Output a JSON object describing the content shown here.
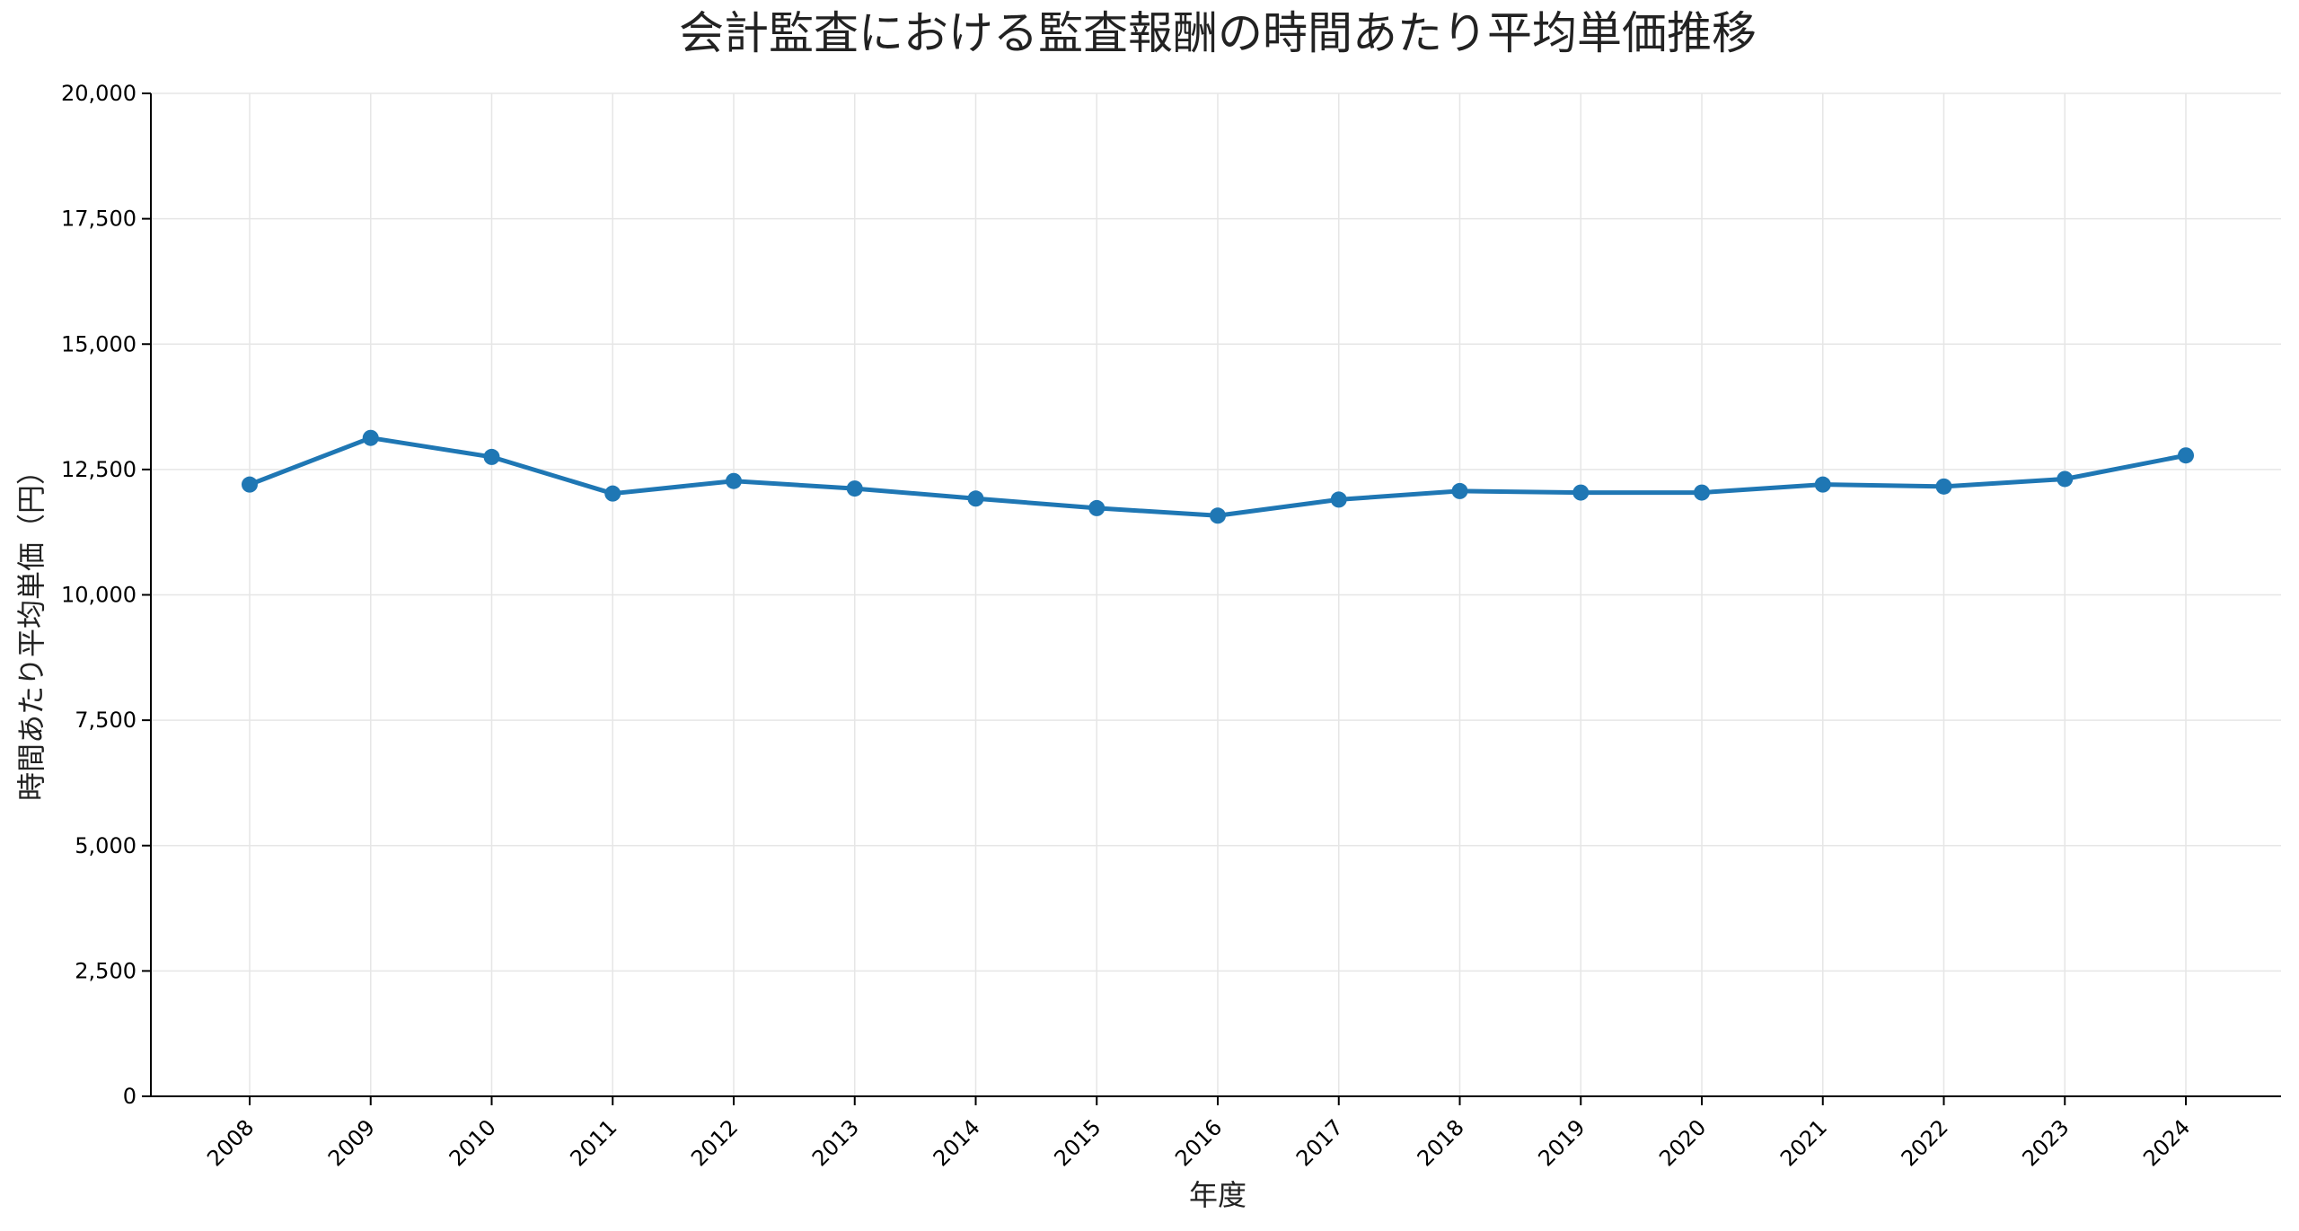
{
  "chart_data": {
    "type": "line",
    "title": "会計監査における監査報酬の時間あたり平均単価推移",
    "xlabel": "年度",
    "ylabel": "時間あたり平均単価（円）",
    "x": [
      "2008",
      "2009",
      "2010",
      "2011",
      "2012",
      "2013",
      "2014",
      "2015",
      "2016",
      "2017",
      "2018",
      "2019",
      "2020",
      "2021",
      "2022",
      "2023",
      "2024"
    ],
    "series": [
      {
        "values": [
          12200,
          13130,
          12750,
          12020,
          12270,
          12120,
          11920,
          11730,
          11580,
          11900,
          12070,
          12040,
          12040,
          12200,
          12160,
          12310,
          12780
        ],
        "color": "#1f77b4",
        "marker": "circle"
      }
    ],
    "ylim": [
      0,
      20000
    ],
    "yticks": [
      0,
      2500,
      5000,
      7500,
      10000,
      12500,
      15000,
      17500,
      20000
    ],
    "ytick_labels": [
      "0",
      "2,500",
      "5,000",
      "7,500",
      "10,000",
      "12,500",
      "15,000",
      "17,500",
      "20,000"
    ],
    "grid": true,
    "legend": "none"
  }
}
